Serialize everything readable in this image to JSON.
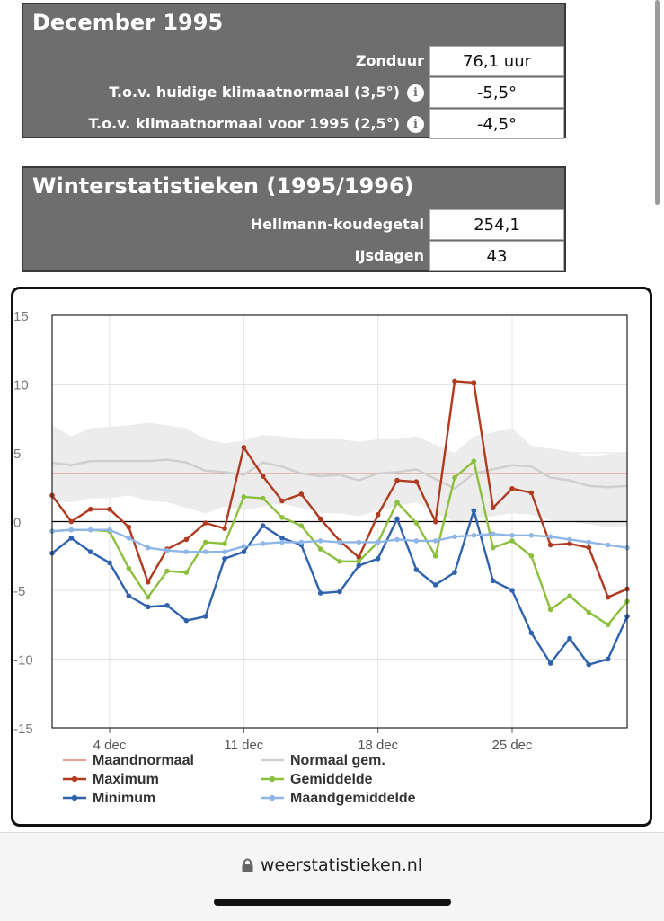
{
  "december": {
    "title": "December 1995",
    "rows": [
      {
        "label": "Zonduur",
        "value": "76,1 uur",
        "info": false
      },
      {
        "label": "T.o.v. huidige klimaatnormaal (3,5°)",
        "value": "-5,5°",
        "info": true
      },
      {
        "label": "T.o.v. klimaatnormaal voor 1995 (2,5°)",
        "value": "-4,5°",
        "info": true
      }
    ]
  },
  "winter": {
    "title": "Winterstatistieken (1995/1996)",
    "rows": [
      {
        "label": "Hellmann-koudegetal",
        "value": "254,1"
      },
      {
        "label": "IJsdagen",
        "value": "43"
      }
    ]
  },
  "chart_data": {
    "type": "line",
    "ylim": [
      -15,
      15
    ],
    "y_ticks": [
      15,
      10,
      5,
      0,
      -5,
      -10,
      -15
    ],
    "x": [
      1,
      2,
      3,
      4,
      5,
      6,
      7,
      8,
      9,
      10,
      11,
      12,
      13,
      14,
      15,
      16,
      17,
      18,
      19,
      20,
      21,
      22,
      23,
      24,
      25,
      26,
      27,
      28,
      29,
      30,
      31
    ],
    "x_ticks": [
      {
        "day": 4,
        "label": "4 dec"
      },
      {
        "day": 11,
        "label": "11 dec"
      },
      {
        "day": 18,
        "label": "18 dec"
      },
      {
        "day": 25,
        "label": "25 dec"
      }
    ],
    "grid": true,
    "series": [
      {
        "name": "Maandnormaal",
        "color": "#e0836f",
        "marker": false,
        "values": [
          3.5,
          3.5,
          3.5,
          3.5,
          3.5,
          3.5,
          3.5,
          3.5,
          3.5,
          3.5,
          3.5,
          3.5,
          3.5,
          3.5,
          3.5,
          3.5,
          3.5,
          3.5,
          3.5,
          3.5,
          3.5,
          3.5,
          3.5,
          3.5,
          3.5,
          3.5,
          3.5,
          3.5,
          3.5,
          3.5,
          3.5
        ]
      },
      {
        "name": "Normaal gem.",
        "color": "#cfcfcf",
        "marker": false,
        "values": [
          4.3,
          4.1,
          4.4,
          4.4,
          4.4,
          4.4,
          4.5,
          4.3,
          3.7,
          3.6,
          3.4,
          4.3,
          4.0,
          3.5,
          3.3,
          3.4,
          3.0,
          3.5,
          3.6,
          3.8,
          3.1,
          2.4,
          3.5,
          3.8,
          4.1,
          4.0,
          3.2,
          3.0,
          2.6,
          2.5,
          2.6
        ]
      },
      {
        "name": "Maximum",
        "color": "#b03a1f",
        "marker": true,
        "values": [
          1.9,
          0.0,
          0.9,
          0.9,
          -0.4,
          -4.4,
          -2.0,
          -1.3,
          -0.1,
          -0.5,
          5.4,
          3.3,
          1.5,
          2.0,
          0.2,
          -1.4,
          -2.6,
          0.5,
          3.0,
          2.9,
          0.0,
          10.2,
          10.1,
          1.0,
          2.4,
          2.1,
          -1.7,
          -1.6,
          -1.9,
          -5.5,
          -4.9
        ]
      },
      {
        "name": "Gemiddelde",
        "color": "#8dbf3e",
        "marker": true,
        "values": [
          -0.7,
          -0.6,
          -0.6,
          -0.7,
          -3.4,
          -5.5,
          -3.6,
          -3.7,
          -1.5,
          -1.6,
          1.8,
          1.7,
          0.3,
          -0.3,
          -2.0,
          -2.9,
          -2.9,
          -1.5,
          1.4,
          -0.1,
          -2.5,
          3.2,
          4.4,
          -1.9,
          -1.4,
          -2.5,
          -6.4,
          -5.4,
          -6.6,
          -7.5,
          -5.8
        ]
      },
      {
        "name": "Minimum",
        "color": "#2f62ad",
        "marker": true,
        "values": [
          -2.3,
          -1.2,
          -2.2,
          -3.0,
          -5.4,
          -6.2,
          -6.1,
          -7.2,
          -6.9,
          -2.7,
          -2.2,
          -0.3,
          -1.2,
          -1.7,
          -5.2,
          -5.1,
          -3.2,
          -2.7,
          0.2,
          -3.5,
          -4.6,
          -3.7,
          0.8,
          -4.3,
          -5.0,
          -8.1,
          -10.3,
          -8.5,
          -10.4,
          -10.0,
          -6.9
        ]
      },
      {
        "name": "Maandgemiddelde",
        "color": "#8fb6e6",
        "marker": true,
        "values": [
          -0.7,
          -0.6,
          -0.6,
          -0.6,
          -1.2,
          -1.9,
          -2.1,
          -2.2,
          -2.2,
          -2.2,
          -1.8,
          -1.6,
          -1.5,
          -1.5,
          -1.4,
          -1.5,
          -1.5,
          -1.5,
          -1.3,
          -1.4,
          -1.4,
          -1.1,
          -1.0,
          -0.9,
          -1.0,
          -1.0,
          -1.1,
          -1.3,
          -1.5,
          -1.7,
          -1.9
        ]
      }
    ],
    "band": {
      "upper": [
        7.0,
        6.2,
        6.8,
        6.9,
        7.0,
        7.2,
        7.0,
        6.8,
        6.0,
        5.7,
        5.9,
        6.3,
        6.2,
        6.0,
        6.0,
        6.0,
        5.8,
        6.0,
        6.0,
        6.2,
        5.6,
        5.0,
        6.2,
        6.5,
        6.8,
        5.5,
        5.3,
        5.1,
        4.7,
        4.9,
        5.0
      ],
      "lower": [
        1.5,
        1.4,
        1.7,
        1.7,
        1.9,
        1.5,
        1.4,
        1.0,
        0.6,
        1.1,
        0.8,
        1.1,
        1.3,
        1.0,
        0.6,
        0.6,
        0.4,
        0.8,
        1.1,
        1.4,
        0.6,
        0.0,
        0.2,
        0.4,
        0.6,
        0.5,
        0.1,
        0.0,
        -0.2,
        -0.4,
        -0.3
      ],
      "color": "#ececec"
    }
  },
  "legend": [
    {
      "label": "Maandnormaal",
      "style": "line",
      "color": "#e0836f"
    },
    {
      "label": "Normaal gem.",
      "style": "line",
      "color": "#cfcfcf"
    },
    {
      "label": "Maximum",
      "style": "marker",
      "color": "#b03a1f"
    },
    {
      "label": "Gemiddelde",
      "style": "marker",
      "color": "#8dbf3e"
    },
    {
      "label": "Minimum",
      "style": "marker",
      "color": "#2f62ad"
    },
    {
      "label": "Maandgemiddelde",
      "style": "marker",
      "color": "#8fb6e6"
    }
  ],
  "footer": {
    "url": "weerstatistieken.nl",
    "lock_icon": "lock-icon"
  }
}
